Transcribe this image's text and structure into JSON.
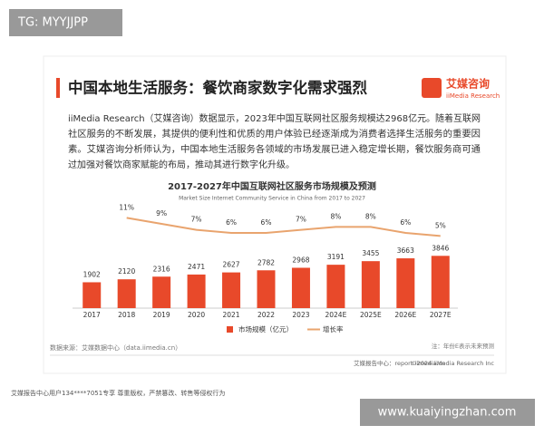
{
  "watermark_top": "TG: MYYJJPP",
  "slide": {
    "title": "中国本地生活服务：餐饮商家数字化需求强烈",
    "logo": {
      "name": "艾媒咨询",
      "sub": "iiMedia Research"
    },
    "paragraph": [
      "iiMedia Research（艾媒咨询）数据显示，2023年中国互联网社区服务规模达2968亿元。随着互联网",
      "社区服务的不断发展，其提供的便利性和优质的用户体验已经逐渐成为消费者选择生活服务的重要因",
      "素。艾媒咨询分析师认为，中国本地生活服务各领域的市场发展已进入稳定增长期，餐饮服务商可通",
      "过加强对餐饮商家赋能的布局，推动其进行数字化升级。"
    ],
    "source": "数据来源：艾媒数据中心（data.iimedia.cn）",
    "note": "注：年份E表示未来预测",
    "footer": {
      "site": "艾媒报告中心：report.iimedia.cn",
      "copyright": "©2024  iiMedia Research  Inc"
    }
  },
  "chart_data": {
    "type": "combo",
    "title": "2017-2027年中国互联网社区服务市场规模及预测",
    "subtitle": "Market Size Internet Community Service in China from 2017 to 2027",
    "categories": [
      "2017",
      "2018",
      "2019",
      "2020",
      "2021",
      "2022",
      "2023",
      "2024E",
      "2025E",
      "2026E",
      "2027E"
    ],
    "series": [
      {
        "name": "市场规模（亿元）",
        "type": "bar",
        "color": "#e8492a",
        "values": [
          1902,
          2120,
          2316,
          2471,
          2627,
          2782,
          2968,
          3191,
          3455,
          3663,
          3846
        ]
      },
      {
        "name": "增长率",
        "type": "line",
        "axis": "y2",
        "color": "#e9a46e",
        "values": [
          null,
          11,
          9,
          7,
          6,
          6,
          7,
          8,
          8,
          6,
          5
        ],
        "value_labels": [
          null,
          "11%",
          "9%",
          "7%",
          "6%",
          "6%",
          "7%",
          "8%",
          "8%",
          "6%",
          "5%"
        ]
      }
    ],
    "ylim": [
      0,
      6000
    ],
    "y2lim": [
      0,
      15
    ]
  },
  "bottom_notice": "艾媒报告中心用户134****7051专享 尊重版权，严禁篡改、转售等侵权行为",
  "watermark_bottom": "www.kuaiyingzhan.com"
}
